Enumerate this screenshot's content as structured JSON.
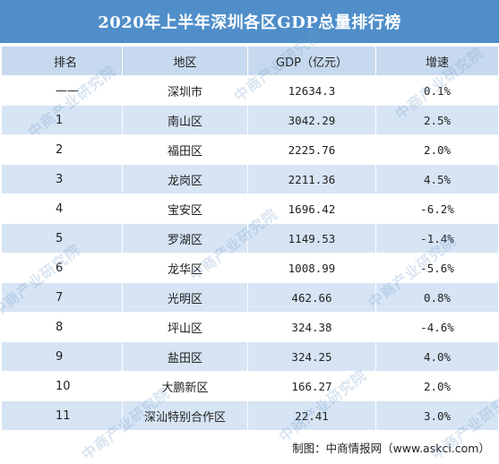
{
  "title": "2020年上半年深圳各区GDP总量排行榜",
  "headers": {
    "rank": "排名",
    "district": "地区",
    "gdp": "GDP（亿元）",
    "growth": "增速"
  },
  "rows": [
    {
      "rank": "——",
      "district": "深圳市",
      "gdp": "12634.3",
      "growth": "0.1%"
    },
    {
      "rank": "1",
      "district": "南山区",
      "gdp": "3042.29",
      "growth": "2.5%"
    },
    {
      "rank": "2",
      "district": "福田区",
      "gdp": "2225.76",
      "growth": "2.0%"
    },
    {
      "rank": "3",
      "district": "龙岗区",
      "gdp": "2211.36",
      "growth": "4.5%"
    },
    {
      "rank": "4",
      "district": "宝安区",
      "gdp": "1696.42",
      "growth": "-6.2%"
    },
    {
      "rank": "5",
      "district": "罗湖区",
      "gdp": "1149.53",
      "growth": "-1.4%"
    },
    {
      "rank": "6",
      "district": "龙华区",
      "gdp": "1008.99",
      "growth": "-5.6%"
    },
    {
      "rank": "7",
      "district": "光明区",
      "gdp": "462.66",
      "growth": "0.8%"
    },
    {
      "rank": "8",
      "district": "坪山区",
      "gdp": "324.38",
      "growth": "-4.6%"
    },
    {
      "rank": "9",
      "district": "盐田区",
      "gdp": "324.25",
      "growth": "4.0%"
    },
    {
      "rank": "10",
      "district": "大鹏新区",
      "gdp": "166.27",
      "growth": "2.0%"
    },
    {
      "rank": "11",
      "district": "深汕特别合作区",
      "gdp": "22.41",
      "growth": "3.0%"
    }
  ],
  "footer": {
    "source": "制图：中商情报网（www.askci.com）"
  },
  "watermark": {
    "text": "中商产业研究院"
  },
  "colors": {
    "title_bg": "#4f8ec9",
    "header_bg": "#c7d9ee",
    "stripe_bg": "#d6e4f4"
  }
}
